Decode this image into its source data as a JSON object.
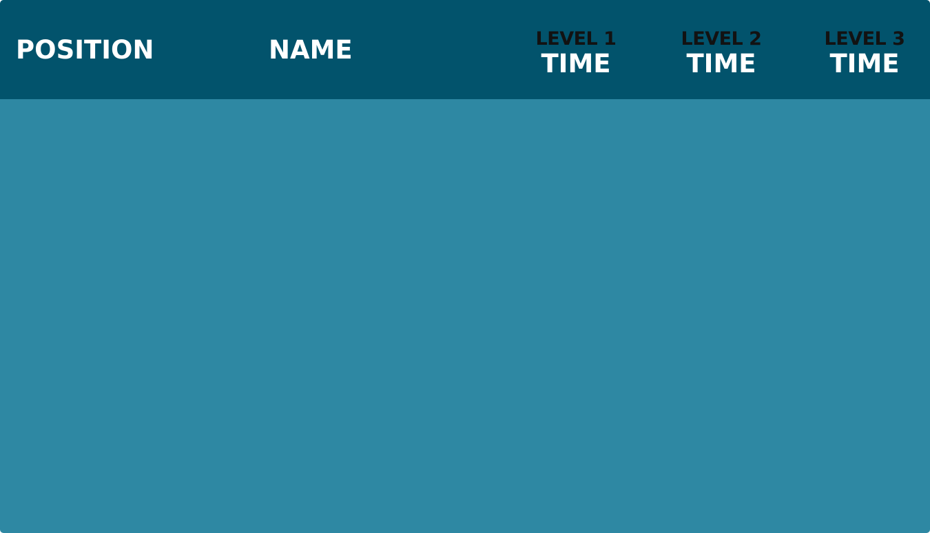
{
  "leaderboard": {
    "columns": {
      "position": "POSITION",
      "name": "NAME",
      "level1": {
        "top": "LEVEL 1",
        "bottom": "TIME"
      },
      "level2": {
        "top": "LEVEL 2",
        "bottom": "TIME"
      },
      "level3": {
        "top": "LEVEL 3",
        "bottom": "TIME"
      }
    },
    "rows": []
  },
  "colors": {
    "header_bg": "#02536c",
    "body_bg": "#2e88a3",
    "header_text": "#ffffff",
    "level_label_text": "#121212"
  }
}
